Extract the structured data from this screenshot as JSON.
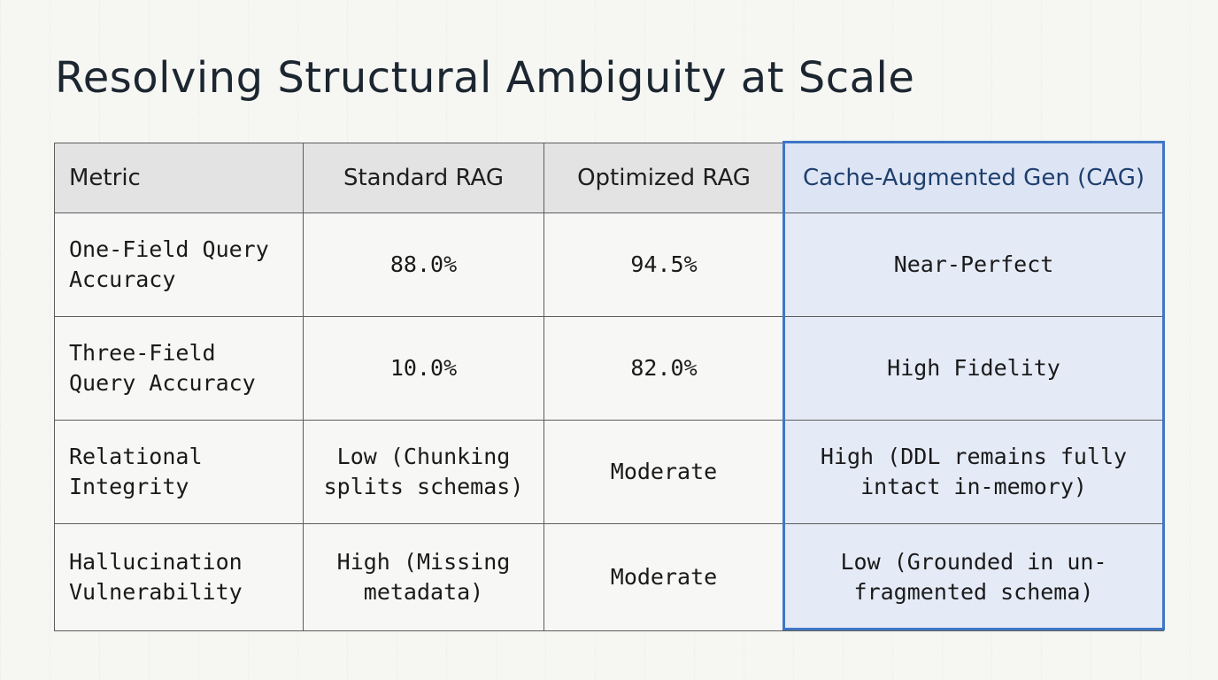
{
  "title": "Resolving Structural Ambiguity at Scale",
  "table": {
    "headers": [
      "Metric",
      "Standard RAG",
      "Optimized RAG",
      "Cache-Augmented Gen (CAG)"
    ],
    "rows": [
      {
        "metric": "One-Field Query Accuracy",
        "standard_rag": "88.0%",
        "optimized_rag": "94.5%",
        "cag": "Near-Perfect"
      },
      {
        "metric": "Three-Field Query Accuracy",
        "standard_rag": "10.0%",
        "optimized_rag": "82.0%",
        "cag": "High Fidelity"
      },
      {
        "metric": "Relational Integrity",
        "standard_rag": "Low (Chunking splits schemas)",
        "optimized_rag": "Moderate",
        "cag": "High (DDL remains fully intact in-memory)"
      },
      {
        "metric": "Hallucination Vulnerability",
        "standard_rag": "High (Missing metadata)",
        "optimized_rag": "Moderate",
        "cag": "Low (Grounded in un-fragmented schema)"
      }
    ]
  },
  "colors": {
    "highlight_border": "#3f76c6",
    "highlight_fill": "#e4eaf6",
    "header_fill": "#e3e3e3",
    "title_text": "#1c2630"
  }
}
